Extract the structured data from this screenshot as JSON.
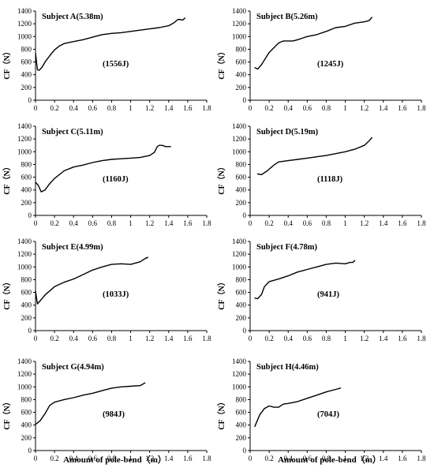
{
  "figure": {
    "xlabel": "Amount of pole-bend（m）",
    "ylabel": "CF（N）",
    "colors": {
      "line": "#000000",
      "axis": "#000000",
      "background": "#ffffff"
    }
  },
  "chart_data": [
    {
      "type": "line",
      "title": "Subject A(5.38m)",
      "annotation": "(1556J)",
      "xlim": [
        0,
        1.8
      ],
      "ylim": [
        0,
        1400
      ],
      "xticks": [
        "0",
        "0.2",
        "0.4",
        "0.6",
        "0.8",
        "1",
        "1.2",
        "1.4",
        "1.6",
        "1.8"
      ],
      "yticks": [
        "0",
        "200",
        "400",
        "600",
        "800",
        "1000",
        "1200",
        "1400"
      ],
      "x": [
        0.0,
        0.02,
        0.04,
        0.07,
        0.1,
        0.15,
        0.2,
        0.25,
        0.3,
        0.4,
        0.5,
        0.6,
        0.7,
        0.8,
        0.9,
        1.0,
        1.1,
        1.2,
        1.3,
        1.4,
        1.45,
        1.5,
        1.55,
        1.57
      ],
      "y": [
        740,
        480,
        470,
        520,
        600,
        700,
        790,
        850,
        890,
        920,
        950,
        990,
        1030,
        1050,
        1060,
        1080,
        1100,
        1120,
        1140,
        1170,
        1210,
        1270,
        1260,
        1290
      ]
    },
    {
      "type": "line",
      "title": "Subject B(5.26m)",
      "annotation": "(1245J)",
      "xlim": [
        0,
        1.8
      ],
      "ylim": [
        0,
        1400
      ],
      "xticks": [
        "0",
        "0.2",
        "0.4",
        "0.6",
        "0.8",
        "1",
        "1.2",
        "1.4",
        "1.6",
        "1.8"
      ],
      "yticks": [
        "0",
        "200",
        "400",
        "600",
        "800",
        "1000",
        "1200",
        "1400"
      ],
      "x": [
        0.05,
        0.08,
        0.12,
        0.2,
        0.3,
        0.35,
        0.4,
        0.45,
        0.5,
        0.6,
        0.7,
        0.8,
        0.9,
        1.0,
        1.1,
        1.2,
        1.25,
        1.28
      ],
      "y": [
        510,
        490,
        560,
        750,
        900,
        930,
        930,
        930,
        950,
        1000,
        1030,
        1080,
        1140,
        1160,
        1210,
        1230,
        1250,
        1300
      ]
    },
    {
      "type": "line",
      "title": "Subject C(5.11m)",
      "annotation": "(1160J)",
      "xlim": [
        0,
        1.8
      ],
      "ylim": [
        0,
        1400
      ],
      "xticks": [
        "0",
        "0.2",
        "0.4",
        "0.6",
        "0.8",
        "1",
        "1.2",
        "1.4",
        "1.6",
        "1.8"
      ],
      "yticks": [
        "0",
        "200",
        "400",
        "600",
        "800",
        "1000",
        "1200",
        "1400"
      ],
      "x": [
        0.0,
        0.03,
        0.06,
        0.1,
        0.15,
        0.2,
        0.3,
        0.4,
        0.5,
        0.6,
        0.7,
        0.8,
        0.9,
        1.0,
        1.1,
        1.2,
        1.25,
        1.28,
        1.3,
        1.33,
        1.37,
        1.42
      ],
      "y": [
        520,
        470,
        370,
        400,
        500,
        580,
        700,
        760,
        790,
        830,
        860,
        880,
        890,
        900,
        910,
        940,
        990,
        1080,
        1100,
        1100,
        1080,
        1080
      ]
    },
    {
      "type": "line",
      "title": "Subject D(5.19m)",
      "annotation": "(1118J)",
      "xlim": [
        0,
        1.8
      ],
      "ylim": [
        0,
        1400
      ],
      "xticks": [
        "0",
        "0.2",
        "0.4",
        "0.6",
        "0.8",
        "1",
        "1.2",
        "1.4",
        "1.6",
        "1.8"
      ],
      "yticks": [
        "0",
        "200",
        "400",
        "600",
        "800",
        "1000",
        "1200",
        "1400"
      ],
      "x": [
        0.08,
        0.12,
        0.18,
        0.25,
        0.3,
        0.4,
        0.5,
        0.6,
        0.7,
        0.8,
        0.9,
        1.0,
        1.1,
        1.2,
        1.25,
        1.28
      ],
      "y": [
        650,
        640,
        700,
        790,
        840,
        860,
        880,
        900,
        920,
        940,
        970,
        1000,
        1040,
        1100,
        1170,
        1220
      ]
    },
    {
      "type": "line",
      "title": "Subject E(4.99m)",
      "annotation": "(1033J)",
      "xlim": [
        0,
        1.8
      ],
      "ylim": [
        0,
        1400
      ],
      "xticks": [
        "0",
        "0.2",
        "0.4",
        "0.6",
        "0.8",
        "1",
        "1.2",
        "1.4",
        "1.6",
        "1.8"
      ],
      "yticks": [
        "0",
        "200",
        "400",
        "600",
        "800",
        "1000",
        "1200",
        "1400"
      ],
      "x": [
        0.0,
        0.02,
        0.05,
        0.1,
        0.2,
        0.3,
        0.4,
        0.5,
        0.6,
        0.7,
        0.8,
        0.9,
        1.0,
        1.05,
        1.1,
        1.15,
        1.18
      ],
      "y": [
        620,
        420,
        470,
        560,
        690,
        760,
        810,
        880,
        950,
        1000,
        1040,
        1050,
        1040,
        1060,
        1080,
        1130,
        1150
      ]
    },
    {
      "type": "line",
      "title": "Subject F(4.78m)",
      "annotation": "(941J)",
      "xlim": [
        0,
        1.8
      ],
      "ylim": [
        0,
        1400
      ],
      "xticks": [
        "0",
        "0.2",
        "0.4",
        "0.6",
        "0.8",
        "1",
        "1.2",
        "1.4",
        "1.6",
        "1.8"
      ],
      "yticks": [
        "0",
        "200",
        "400",
        "600",
        "800",
        "1000",
        "1200",
        "1400"
      ],
      "x": [
        0.05,
        0.08,
        0.12,
        0.15,
        0.2,
        0.3,
        0.4,
        0.5,
        0.6,
        0.7,
        0.8,
        0.9,
        1.0,
        1.05,
        1.08,
        1.1
      ],
      "y": [
        510,
        500,
        570,
        690,
        770,
        810,
        860,
        920,
        960,
        1000,
        1040,
        1060,
        1050,
        1070,
        1070,
        1100
      ]
    },
    {
      "type": "line",
      "title": "Subject G(4.94m)",
      "annotation": "(984J)",
      "xlim": [
        0,
        1.8
      ],
      "ylim": [
        0,
        1400
      ],
      "xticks": [
        "0",
        "0.2",
        "0.4",
        "0.6",
        "0.8",
        "1",
        "1.2",
        "1.4",
        "1.6",
        "1.8"
      ],
      "yticks": [
        "0",
        "200",
        "400",
        "600",
        "800",
        "1000",
        "1200",
        "1400"
      ],
      "x": [
        0.0,
        0.05,
        0.1,
        0.15,
        0.2,
        0.3,
        0.4,
        0.5,
        0.6,
        0.7,
        0.8,
        0.9,
        1.0,
        1.1,
        1.15
      ],
      "y": [
        410,
        470,
        580,
        710,
        760,
        800,
        830,
        870,
        900,
        940,
        980,
        1000,
        1010,
        1020,
        1060
      ]
    },
    {
      "type": "line",
      "title": "Subject H(4.46m)",
      "annotation": "(704J)",
      "xlim": [
        0,
        1.8
      ],
      "ylim": [
        0,
        1400
      ],
      "xticks": [
        "0",
        "0.2",
        "0.4",
        "0.6",
        "0.8",
        "1",
        "1.2",
        "1.4",
        "1.6",
        "1.8"
      ],
      "yticks": [
        "0",
        "200",
        "400",
        "600",
        "800",
        "1000",
        "1200",
        "1400"
      ],
      "x": [
        0.05,
        0.1,
        0.15,
        0.2,
        0.25,
        0.3,
        0.35,
        0.4,
        0.5,
        0.6,
        0.7,
        0.8,
        0.9,
        0.95
      ],
      "y": [
        380,
        560,
        660,
        700,
        680,
        680,
        730,
        740,
        770,
        820,
        870,
        920,
        960,
        980
      ]
    }
  ]
}
